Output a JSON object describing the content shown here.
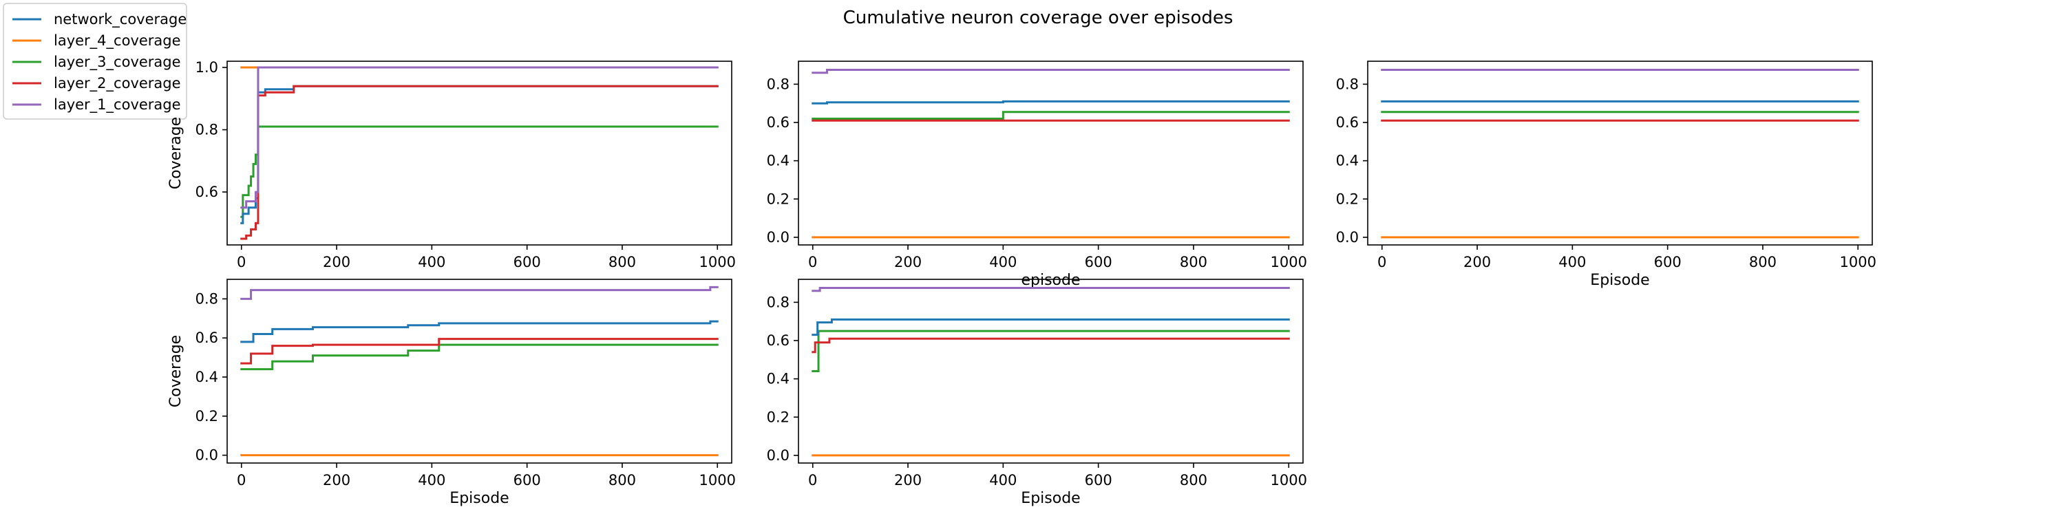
{
  "figure_title": "Cumulative neuron coverage over episodes",
  "legend": {
    "items": [
      {
        "label": "network_coverage",
        "color": "#1f77b4"
      },
      {
        "label": "layer_4_coverage",
        "color": "#ff7f0e"
      },
      {
        "label": "layer_3_coverage",
        "color": "#2ca02c"
      },
      {
        "label": "layer_2_coverage",
        "color": "#d62728"
      },
      {
        "label": "layer_1_coverage",
        "color": "#9467bd"
      }
    ]
  },
  "chart_data": [
    {
      "type": "line",
      "xlabel": "",
      "ylabel": "Coverage",
      "xlim": [
        -30,
        1030
      ],
      "ylim": [
        0.43,
        1.02
      ],
      "xticks": [
        0,
        200,
        400,
        600,
        800,
        1000
      ],
      "yticks": [
        0.6,
        0.8,
        1.0
      ],
      "ytick_labels": [
        "0.6",
        "0.8",
        "1.0"
      ],
      "series": [
        {
          "name": "layer_4_coverage",
          "color": "#ff7f0e",
          "points": [
            [
              0,
              1.0
            ],
            [
              1000,
              1.0
            ]
          ]
        },
        {
          "name": "layer_3_coverage",
          "color": "#2ca02c",
          "points": [
            [
              0,
              0.52
            ],
            [
              3,
              0.59
            ],
            [
              15,
              0.62
            ],
            [
              20,
              0.65
            ],
            [
              25,
              0.69
            ],
            [
              30,
              0.72
            ],
            [
              35,
              0.81
            ],
            [
              1000,
              0.81
            ]
          ]
        },
        {
          "name": "network_coverage",
          "color": "#1f77b4",
          "points": [
            [
              0,
              0.5
            ],
            [
              3,
              0.53
            ],
            [
              15,
              0.55
            ],
            [
              30,
              0.58
            ],
            [
              35,
              0.92
            ],
            [
              50,
              0.93
            ],
            [
              110,
              0.94
            ],
            [
              1000,
              0.94
            ]
          ]
        },
        {
          "name": "layer_2_coverage",
          "color": "#d62728",
          "points": [
            [
              0,
              0.45
            ],
            [
              10,
              0.46
            ],
            [
              20,
              0.48
            ],
            [
              30,
              0.5
            ],
            [
              35,
              0.91
            ],
            [
              50,
              0.92
            ],
            [
              110,
              0.94
            ],
            [
              1000,
              0.94
            ]
          ]
        },
        {
          "name": "layer_1_coverage",
          "color": "#9467bd",
          "points": [
            [
              0,
              0.55
            ],
            [
              10,
              0.57
            ],
            [
              30,
              0.6
            ],
            [
              35,
              1.0
            ],
            [
              1000,
              1.0
            ]
          ]
        }
      ]
    },
    {
      "type": "line",
      "xlabel": "episode",
      "ylabel": "",
      "xlim": [
        -30,
        1030
      ],
      "ylim": [
        -0.04,
        0.92
      ],
      "xticks": [
        0,
        200,
        400,
        600,
        800,
        1000
      ],
      "yticks": [
        0.0,
        0.2,
        0.4,
        0.6,
        0.8
      ],
      "ytick_labels": [
        "0.0",
        "0.2",
        "0.4",
        "0.6",
        "0.8"
      ],
      "series": [
        {
          "name": "layer_4_coverage",
          "color": "#ff7f0e",
          "points": [
            [
              0,
              0.0
            ],
            [
              1000,
              0.0
            ]
          ]
        },
        {
          "name": "layer_3_coverage",
          "color": "#2ca02c",
          "points": [
            [
              0,
              0.62
            ],
            [
              400,
              0.62
            ],
            [
              400,
              0.655
            ],
            [
              1000,
              0.655
            ]
          ]
        },
        {
          "name": "layer_2_coverage",
          "color": "#d62728",
          "points": [
            [
              0,
              0.61
            ],
            [
              1000,
              0.61
            ]
          ]
        },
        {
          "name": "network_coverage",
          "color": "#1f77b4",
          "points": [
            [
              0,
              0.7
            ],
            [
              30,
              0.7
            ],
            [
              30,
              0.705
            ],
            [
              400,
              0.705
            ],
            [
              400,
              0.71
            ],
            [
              1000,
              0.71
            ]
          ]
        },
        {
          "name": "layer_1_coverage",
          "color": "#9467bd",
          "points": [
            [
              0,
              0.86
            ],
            [
              30,
              0.86
            ],
            [
              30,
              0.875
            ],
            [
              1000,
              0.875
            ]
          ]
        }
      ]
    },
    {
      "type": "line",
      "xlabel": "Episode",
      "ylabel": "",
      "xlim": [
        -30,
        1030
      ],
      "ylim": [
        -0.04,
        0.92
      ],
      "xticks": [
        0,
        200,
        400,
        600,
        800,
        1000
      ],
      "yticks": [
        0.0,
        0.2,
        0.4,
        0.6,
        0.8
      ],
      "ytick_labels": [
        "0.0",
        "0.2",
        "0.4",
        "0.6",
        "0.8"
      ],
      "series": [
        {
          "name": "layer_4_coverage",
          "color": "#ff7f0e",
          "points": [
            [
              0,
              0.0
            ],
            [
              1000,
              0.0
            ]
          ]
        },
        {
          "name": "layer_2_coverage",
          "color": "#d62728",
          "points": [
            [
              0,
              0.61
            ],
            [
              1000,
              0.61
            ]
          ]
        },
        {
          "name": "layer_3_coverage",
          "color": "#2ca02c",
          "points": [
            [
              0,
              0.655
            ],
            [
              1000,
              0.655
            ]
          ]
        },
        {
          "name": "network_coverage",
          "color": "#1f77b4",
          "points": [
            [
              0,
              0.71
            ],
            [
              1000,
              0.71
            ]
          ]
        },
        {
          "name": "layer_1_coverage",
          "color": "#9467bd",
          "points": [
            [
              0,
              0.875
            ],
            [
              1000,
              0.875
            ]
          ]
        }
      ]
    },
    {
      "type": "line",
      "xlabel": "Episode",
      "ylabel": "Coverage",
      "xlim": [
        -30,
        1030
      ],
      "ylim": [
        -0.04,
        0.9
      ],
      "xticks": [
        0,
        200,
        400,
        600,
        800,
        1000
      ],
      "yticks": [
        0.0,
        0.2,
        0.4,
        0.6,
        0.8
      ],
      "ytick_labels": [
        "0.0",
        "0.2",
        "0.4",
        "0.6",
        "0.8"
      ],
      "series": [
        {
          "name": "layer_4_coverage",
          "color": "#ff7f0e",
          "points": [
            [
              0,
              0.0
            ],
            [
              1000,
              0.0
            ]
          ]
        },
        {
          "name": "layer_3_coverage",
          "color": "#2ca02c",
          "points": [
            [
              0,
              0.44
            ],
            [
              65,
              0.44
            ],
            [
              65,
              0.48
            ],
            [
              150,
              0.48
            ],
            [
              150,
              0.51
            ],
            [
              350,
              0.51
            ],
            [
              350,
              0.535
            ],
            [
              415,
              0.535
            ],
            [
              415,
              0.565
            ],
            [
              1000,
              0.565
            ]
          ]
        },
        {
          "name": "layer_2_coverage",
          "color": "#d62728",
          "points": [
            [
              0,
              0.47
            ],
            [
              20,
              0.47
            ],
            [
              20,
              0.52
            ],
            [
              65,
              0.52
            ],
            [
              65,
              0.56
            ],
            [
              150,
              0.56
            ],
            [
              150,
              0.565
            ],
            [
              415,
              0.565
            ],
            [
              415,
              0.595
            ],
            [
              1000,
              0.595
            ]
          ]
        },
        {
          "name": "network_coverage",
          "color": "#1f77b4",
          "points": [
            [
              0,
              0.58
            ],
            [
              25,
              0.58
            ],
            [
              25,
              0.62
            ],
            [
              65,
              0.62
            ],
            [
              65,
              0.645
            ],
            [
              150,
              0.645
            ],
            [
              150,
              0.655
            ],
            [
              350,
              0.655
            ],
            [
              350,
              0.665
            ],
            [
              415,
              0.665
            ],
            [
              415,
              0.675
            ],
            [
              985,
              0.675
            ],
            [
              985,
              0.685
            ],
            [
              1000,
              0.685
            ]
          ]
        },
        {
          "name": "layer_1_coverage",
          "color": "#9467bd",
          "points": [
            [
              0,
              0.8
            ],
            [
              20,
              0.8
            ],
            [
              20,
              0.845
            ],
            [
              985,
              0.845
            ],
            [
              985,
              0.86
            ],
            [
              1000,
              0.86
            ]
          ]
        }
      ]
    },
    {
      "type": "line",
      "xlabel": "Episode",
      "ylabel": "",
      "xlim": [
        -30,
        1030
      ],
      "ylim": [
        -0.04,
        0.92
      ],
      "xticks": [
        0,
        200,
        400,
        600,
        800,
        1000
      ],
      "yticks": [
        0.0,
        0.2,
        0.4,
        0.6,
        0.8
      ],
      "ytick_labels": [
        "0.0",
        "0.2",
        "0.4",
        "0.6",
        "0.8"
      ],
      "series": [
        {
          "name": "layer_4_coverage",
          "color": "#ff7f0e",
          "points": [
            [
              0,
              0.0
            ],
            [
              1000,
              0.0
            ]
          ]
        },
        {
          "name": "layer_3_coverage",
          "color": "#2ca02c",
          "points": [
            [
              0,
              0.44
            ],
            [
              12,
              0.44
            ],
            [
              12,
              0.65
            ],
            [
              1000,
              0.65
            ]
          ]
        },
        {
          "name": "layer_2_coverage",
          "color": "#d62728",
          "points": [
            [
              0,
              0.54
            ],
            [
              5,
              0.54
            ],
            [
              5,
              0.59
            ],
            [
              35,
              0.59
            ],
            [
              35,
              0.61
            ],
            [
              1000,
              0.61
            ]
          ]
        },
        {
          "name": "network_coverage",
          "color": "#1f77b4",
          "points": [
            [
              0,
              0.63
            ],
            [
              10,
              0.63
            ],
            [
              10,
              0.695
            ],
            [
              40,
              0.695
            ],
            [
              40,
              0.71
            ],
            [
              1000,
              0.71
            ]
          ]
        },
        {
          "name": "layer_1_coverage",
          "color": "#9467bd",
          "points": [
            [
              0,
              0.86
            ],
            [
              15,
              0.86
            ],
            [
              15,
              0.875
            ],
            [
              1000,
              0.875
            ]
          ]
        }
      ]
    }
  ]
}
